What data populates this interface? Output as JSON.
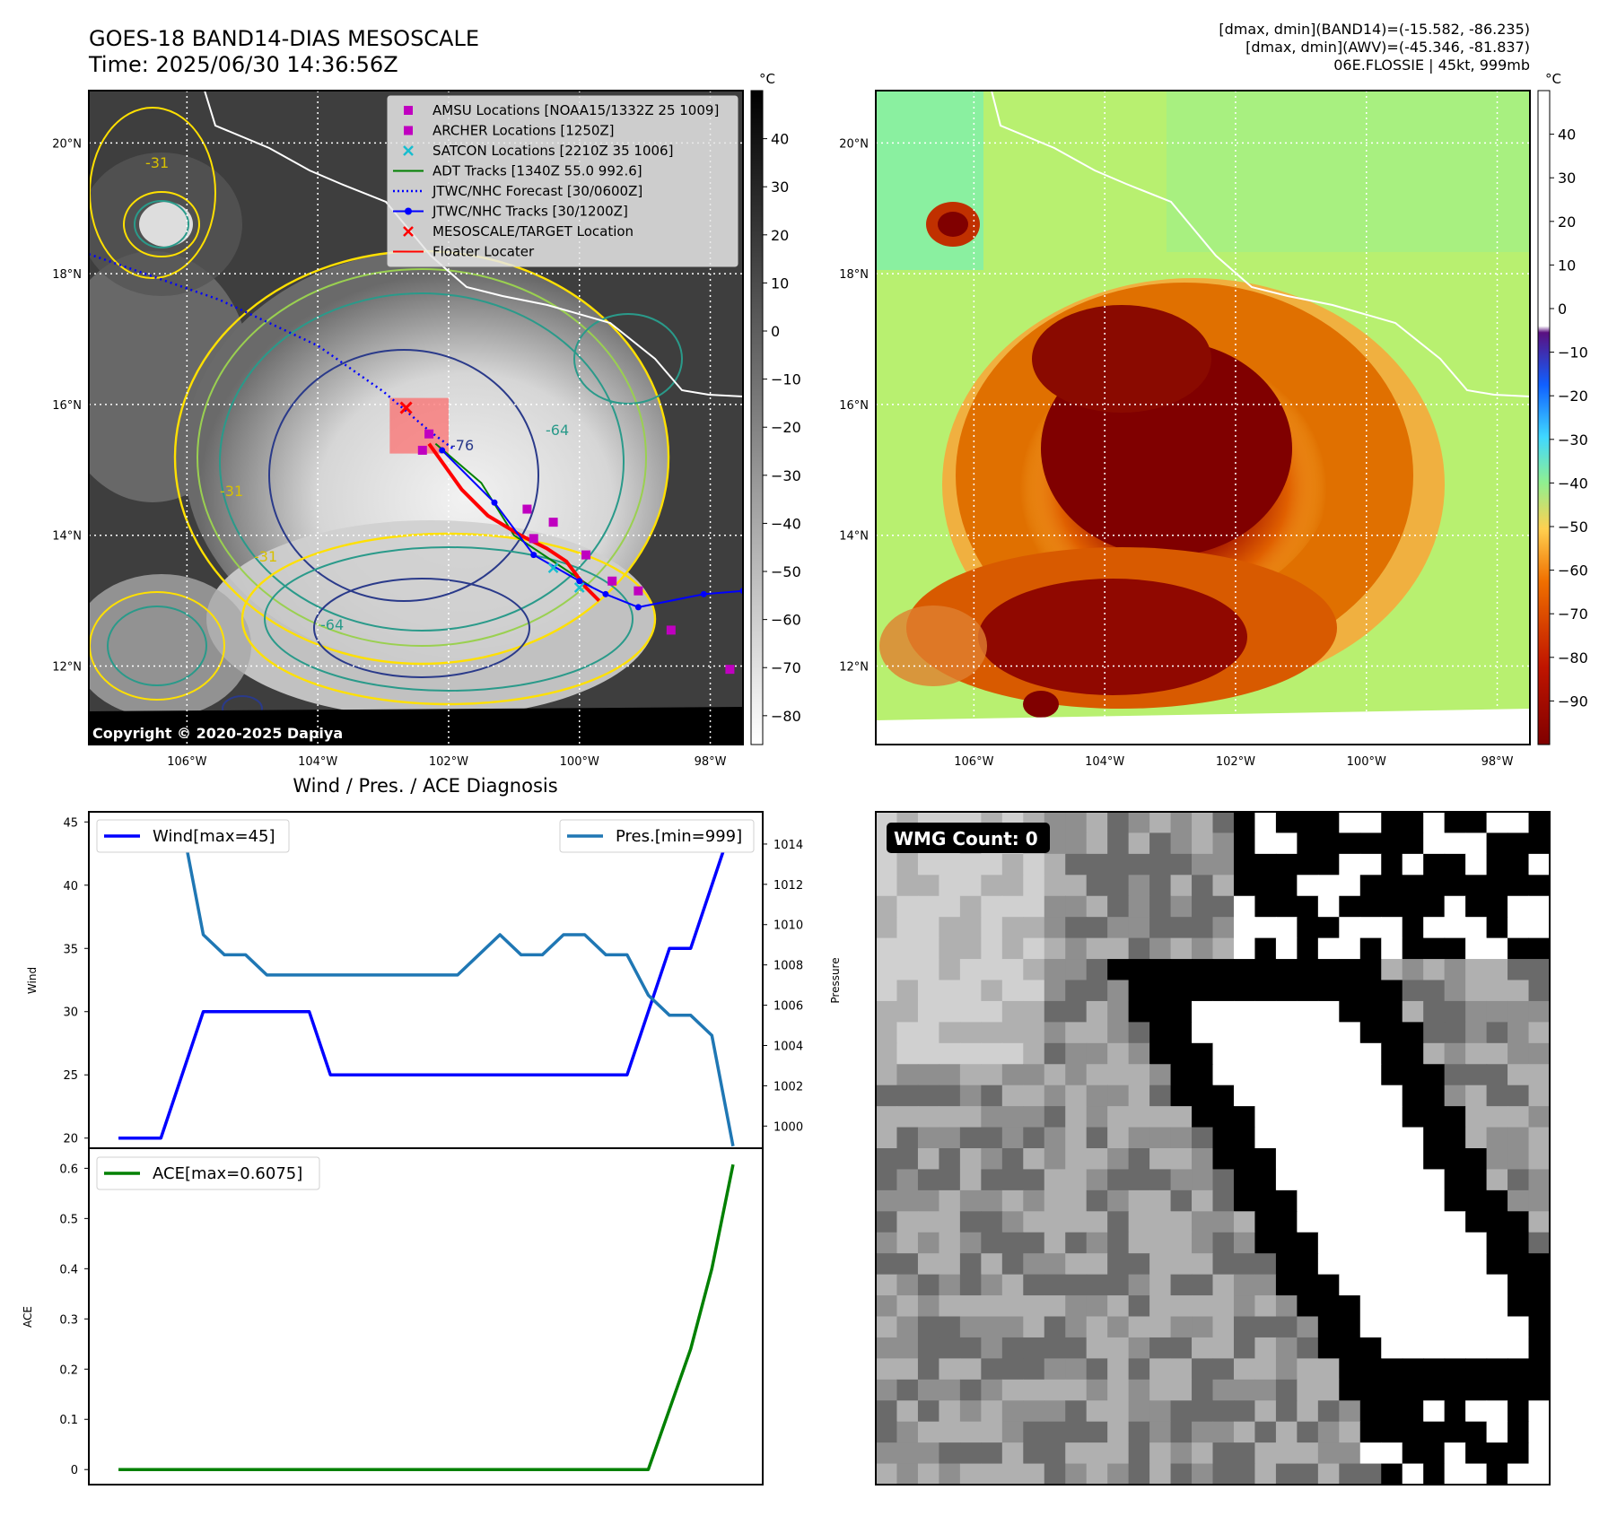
{
  "header": {
    "title_line1": "GOES-18 BAND14-DIAS MESOSCALE",
    "title_line2": "Time: 2025/06/30 14:36:56Z",
    "info_line1": "[dmax, dmin](BAND14)=(-15.582, -86.235)",
    "info_line2": "[dmax, dmin](AWV)=(-45.346, -81.837)",
    "info_line3": "06E.FLOSSIE | 45kt, 999mb"
  },
  "map": {
    "lat_labels": [
      "20°N",
      "18°N",
      "16°N",
      "14°N",
      "12°N"
    ],
    "lat_values": [
      20,
      18,
      16,
      14,
      12
    ],
    "lon_labels": [
      "106°W",
      "104°W",
      "102°W",
      "100°W",
      "98°W"
    ],
    "lon_values": [
      -106,
      -104,
      -102,
      -100,
      -98
    ],
    "lon_range": [
      -107.5,
      -97.5
    ],
    "lat_range": [
      10.8,
      20.8
    ],
    "copyright": "Copyright © 2020-2025 Dapiya",
    "contour_labels": [
      "-31",
      "-31",
      "-31",
      "-64",
      "-64",
      "-76"
    ],
    "legend": [
      {
        "label": "AMSU Locations [NOAA15/1332Z 25 1009]",
        "color": "#c000c0",
        "marker": "square"
      },
      {
        "label": "ARCHER Locations [1250Z]",
        "color": "#c000c0",
        "marker": "square"
      },
      {
        "label": "SATCON Locations [2210Z 35 1006]",
        "color": "#17becf",
        "marker": "x"
      },
      {
        "label": "ADT Tracks [1340Z 55.0 992.6]",
        "color": "#008000",
        "marker": "line"
      },
      {
        "label": "JTWC/NHC Forecast [30/0600Z]",
        "color": "#0000ff",
        "marker": "dotted"
      },
      {
        "label": "JTWC/NHC Tracks [30/1200Z]",
        "color": "#0000ff",
        "marker": "line-dot"
      },
      {
        "label": "MESOSCALE/TARGET Location",
        "color": "#ff0000",
        "marker": "x"
      },
      {
        "label": "Floater Locater",
        "color": "#ff0000",
        "marker": "line"
      }
    ],
    "colorbar_gray": {
      "unit": "°C",
      "ticks": [
        "40",
        "30",
        "20",
        "10",
        "0",
        "−10",
        "−20",
        "−30",
        "−40",
        "−50",
        "−60",
        "−70",
        "−80"
      ],
      "values": [
        40,
        30,
        20,
        10,
        0,
        -10,
        -20,
        -30,
        -40,
        -50,
        -60,
        -70,
        -80
      ],
      "range": [
        -86,
        50
      ]
    },
    "colorbar_color": {
      "unit": "°C",
      "ticks": [
        "40",
        "30",
        "20",
        "10",
        "0",
        "−10",
        "−20",
        "−30",
        "−40",
        "−50",
        "−60",
        "−70",
        "−80",
        "−90"
      ],
      "values": [
        40,
        30,
        20,
        10,
        0,
        -10,
        -20,
        -30,
        -40,
        -50,
        -60,
        -70,
        -80,
        -90
      ],
      "range": [
        -100,
        50
      ]
    },
    "colors": {
      "track": "#0000ff",
      "adt": "#008000",
      "floater": "#ff0000",
      "target": "#ff0000",
      "amsu": "#c000c0",
      "satcon": "#17becf"
    },
    "forecast_track": [
      [
        -107.5,
        18.3
      ],
      [
        -105.5,
        17.6
      ],
      [
        -104.0,
        16.9
      ],
      [
        -103.0,
        16.2
      ],
      [
        -102.3,
        15.6
      ],
      [
        -101.9,
        15.3
      ]
    ],
    "best_track": [
      [
        -102.1,
        15.3
      ],
      [
        -101.3,
        14.5
      ],
      [
        -100.7,
        13.7
      ],
      [
        -100.0,
        13.3
      ],
      [
        -99.6,
        13.1
      ],
      [
        -99.1,
        12.9
      ],
      [
        -98.1,
        13.1
      ],
      [
        -97.5,
        13.15
      ]
    ],
    "adt_track": [
      [
        -102.2,
        15.4
      ],
      [
        -101.5,
        14.8
      ],
      [
        -101.0,
        14.0
      ],
      [
        -100.4,
        13.6
      ],
      [
        -99.8,
        13.2
      ]
    ],
    "floater_track": [
      [
        -102.3,
        15.4
      ],
      [
        -101.8,
        14.7
      ],
      [
        -101.4,
        14.3
      ],
      [
        -100.9,
        14.0
      ],
      [
        -100.5,
        13.8
      ],
      [
        -100.2,
        13.6
      ],
      [
        -99.9,
        13.2
      ],
      [
        -99.7,
        13.0
      ]
    ],
    "amsu_points": [
      [
        -102.3,
        15.55
      ],
      [
        -100.8,
        14.4
      ],
      [
        -100.4,
        14.2
      ],
      [
        -100.7,
        13.95
      ],
      [
        -99.9,
        13.7
      ],
      [
        -99.5,
        13.3
      ],
      [
        -99.1,
        13.15
      ],
      [
        -98.6,
        12.55
      ],
      [
        -97.7,
        11.95
      ],
      [
        -102.4,
        15.3
      ]
    ],
    "satcon_points": [
      [
        -100.4,
        13.5
      ],
      [
        -100.0,
        13.2
      ]
    ],
    "target_point": [
      -102.65,
      15.95
    ],
    "floater_box": {
      "lon_min": -102.9,
      "lon_max": -102.0,
      "lat_min": 15.25,
      "lat_max": 16.1
    }
  },
  "diagnosis": {
    "title": "Wind / Pres. / ACE Diagnosis",
    "wind_ylabel": "Wind",
    "pres_ylabel": "Pressure",
    "ace_ylabel": "ACE",
    "wmg_label": "WMG Count: 0"
  },
  "chart_data": [
    {
      "type": "line",
      "ylabel": "Wind",
      "ylim": [
        19.2,
        45.8
      ],
      "yticks": [
        20,
        25,
        30,
        35,
        40,
        45
      ],
      "series": [
        {
          "name": "Wind[max=45]",
          "color": "#0000ff",
          "x": [
            0,
            2,
            4,
            6,
            8,
            9,
            10,
            12,
            14,
            16,
            18,
            20,
            22,
            24,
            25,
            26,
            27,
            28,
            29
          ],
          "values": [
            20,
            20,
            30,
            30,
            30,
            30,
            25,
            25,
            25,
            25,
            25,
            25,
            25,
            25,
            30,
            35,
            35,
            40,
            45
          ]
        }
      ]
    },
    {
      "type": "line",
      "ylabel": "Pressure",
      "ylim": [
        998.9,
        1015.6
      ],
      "yticks": [
        1000,
        1002,
        1004,
        1006,
        1008,
        1010,
        1012,
        1014
      ],
      "series": [
        {
          "name": "Pres.[min=999]",
          "color": "#1f77b4",
          "x": [
            0,
            3,
            4,
            5,
            6,
            7,
            8,
            9,
            10,
            12,
            14,
            16,
            17,
            18,
            19,
            20,
            21,
            22,
            23,
            24,
            25,
            26,
            27,
            28,
            29
          ],
          "values": [
            1015,
            1015,
            1009.5,
            1008.5,
            1008.5,
            1007.5,
            1007.5,
            1007.5,
            1007.5,
            1007.5,
            1007.5,
            1007.5,
            1008.5,
            1009.5,
            1008.5,
            1008.5,
            1009.5,
            1009.5,
            1008.5,
            1008.5,
            1006.5,
            1005.5,
            1005.5,
            1004.5,
            999
          ]
        }
      ]
    },
    {
      "type": "line",
      "ylabel": "ACE",
      "ylim": [
        -0.03,
        0.64
      ],
      "yticks": [
        0.0,
        0.1,
        0.2,
        0.3,
        0.4,
        0.5,
        0.6
      ],
      "series": [
        {
          "name": "ACE[max=0.6075]",
          "color": "#008000",
          "x": [
            0,
            5,
            10,
            15,
            20,
            25,
            26,
            27,
            28,
            29
          ],
          "values": [
            0,
            0,
            0,
            0,
            0,
            0,
            0.12,
            0.24,
            0.4,
            0.6075
          ]
        }
      ]
    }
  ]
}
